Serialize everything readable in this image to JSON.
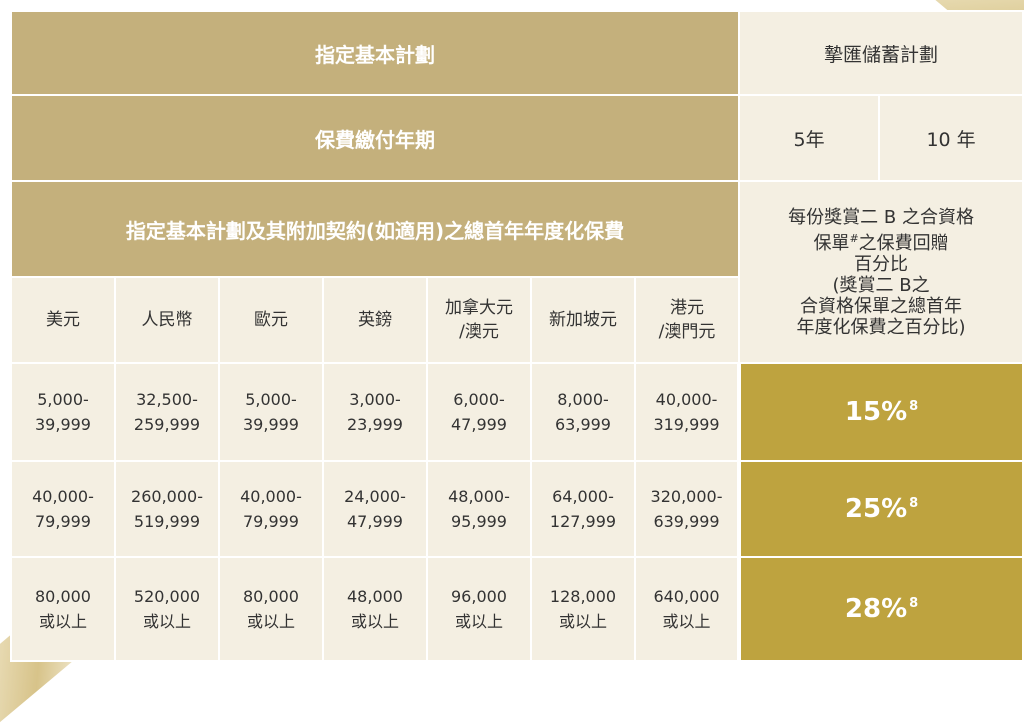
{
  "header": {
    "designated_plan": "指定基本計劃",
    "savings_plan": "摯匯儲蓄計劃",
    "premium_period": "保費繳付年期",
    "term_5": "5年",
    "term_10": "10 年",
    "annual_premium": "指定基本計劃及其附加契約(如適用)之總首年年度化保費",
    "reward_desc": {
      "line1": "每份獎賞二 B 之合資格",
      "line2_a": "保單",
      "line2_mark": "#",
      "line2_b": "之保費回贈",
      "line3": "百分比",
      "line4": "(獎賞二 B之",
      "line5": "合資格保單之總首年",
      "line6": "年度化保費之百分比)"
    }
  },
  "currencies": [
    {
      "l1": "美元",
      "l2": ""
    },
    {
      "l1": "人民幣",
      "l2": ""
    },
    {
      "l1": "歐元",
      "l2": ""
    },
    {
      "l1": "英鎊",
      "l2": ""
    },
    {
      "l1": "加拿大元",
      "l2": "/澳元"
    },
    {
      "l1": "新加坡元",
      "l2": ""
    },
    {
      "l1": "港元",
      "l2": "/澳門元"
    }
  ],
  "rows": [
    {
      "cells": [
        {
          "l1": "5,000-",
          "l2": "39,999"
        },
        {
          "l1": "32,500-",
          "l2": "259,999"
        },
        {
          "l1": "5,000-",
          "l2": "39,999"
        },
        {
          "l1": "3,000-",
          "l2": "23,999"
        },
        {
          "l1": "6,000-",
          "l2": "47,999"
        },
        {
          "l1": "8,000-",
          "l2": "63,999"
        },
        {
          "l1": "40,000-",
          "l2": "319,999"
        }
      ],
      "percent": "15%",
      "note": "8"
    },
    {
      "cells": [
        {
          "l1": "40,000-",
          "l2": "79,999"
        },
        {
          "l1": "260,000-",
          "l2": "519,999"
        },
        {
          "l1": "40,000-",
          "l2": "79,999"
        },
        {
          "l1": "24,000-",
          "l2": "47,999"
        },
        {
          "l1": "48,000-",
          "l2": "95,999"
        },
        {
          "l1": "64,000-",
          "l2": "127,999"
        },
        {
          "l1": "320,000-",
          "l2": "639,999"
        }
      ],
      "percent": "25%",
      "note": "8"
    },
    {
      "cells": [
        {
          "l1": "80,000",
          "l2": "或以上"
        },
        {
          "l1": "520,000",
          "l2": "或以上"
        },
        {
          "l1": "80,000",
          "l2": "或以上"
        },
        {
          "l1": "48,000",
          "l2": "或以上"
        },
        {
          "l1": "96,000",
          "l2": "或以上"
        },
        {
          "l1": "128,000",
          "l2": "或以上"
        },
        {
          "l1": "640,000",
          "l2": "或以上"
        }
      ],
      "percent": "28%",
      "note": "8"
    }
  ],
  "colors": {
    "header_gold": "#c4b07c",
    "dark_gold": "#bea33f",
    "cream": "#f4efe2"
  }
}
